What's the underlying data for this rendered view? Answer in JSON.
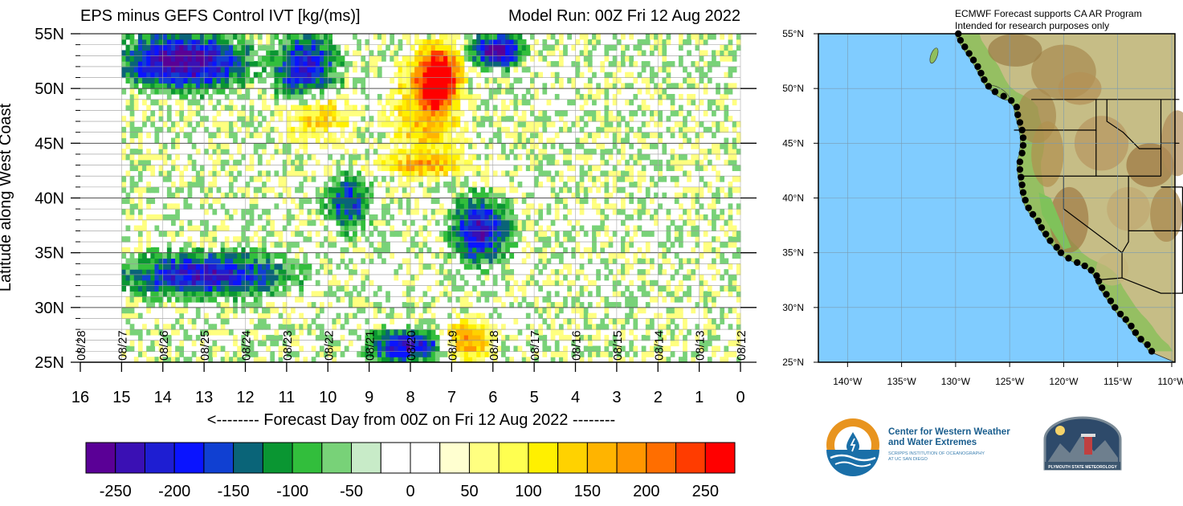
{
  "chart_data": [
    {
      "type": "heatmap",
      "title": "EPS minus GEFS Control IVT [kg/(ms)]",
      "subtitle": "Model Run: 00Z Fri 12 Aug 2022",
      "xlabel": "<-------- Forecast Day from 00Z on Fri 12 Aug 2022 --------",
      "ylabel": "Latitude along West Coast",
      "xlim": [
        16,
        0
      ],
      "ylim": [
        25,
        55
      ],
      "x_ticks": [
        "16",
        "15",
        "14",
        "13",
        "12",
        "11",
        "10",
        "9",
        "8",
        "7",
        "6",
        "5",
        "4",
        "3",
        "2",
        "1",
        "0"
      ],
      "y_ticks": [
        "25N",
        "30N",
        "35N",
        "40N",
        "45N",
        "50N",
        "55N"
      ],
      "date_labels": [
        "08/28",
        "08/27",
        "08/26",
        "08/25",
        "08/24",
        "08/23",
        "08/22",
        "08/21",
        "08/20",
        "08/19",
        "08/18",
        "08/17",
        "08/16",
        "08/15",
        "08/14",
        "08/13",
        "08/12"
      ],
      "colorbar": {
        "ticks": [
          "-250",
          "-200",
          "-150",
          "-100",
          "-50",
          "0",
          "50",
          "100",
          "150",
          "200",
          "250"
        ],
        "colors": [
          "#5a0096",
          "#3a10b4",
          "#1e1ed2",
          "#0a14ff",
          "#1040d2",
          "#0a6478",
          "#0a9632",
          "#32be3c",
          "#78d278",
          "#c8ebc8",
          "#ffffff",
          "#ffffff",
          "#ffffd0",
          "#ffff80",
          "#ffff50",
          "#fff000",
          "#ffd200",
          "#ffb400",
          "#ff9600",
          "#ff6e00",
          "#ff3c00",
          "#ff0000"
        ]
      },
      "features": [
        {
          "lat": [
            50,
            55
          ],
          "day": [
            15,
            12
          ],
          "value": -250
        },
        {
          "lat": [
            49,
            55
          ],
          "day": [
            11.3,
            9.8
          ],
          "value": -200
        },
        {
          "lat": [
            48.5,
            54
          ],
          "day": [
            7.8,
            6.8
          ],
          "value": 250
        },
        {
          "lat": [
            43,
            53
          ],
          "day": [
            8.4,
            6.8
          ],
          "value": 150
        },
        {
          "lat": [
            52,
            55
          ],
          "day": [
            6.5,
            5.3
          ],
          "value": -250
        },
        {
          "lat": [
            31,
            35
          ],
          "day": [
            15,
            11
          ],
          "value": -200
        },
        {
          "lat": [
            34,
            40
          ],
          "day": [
            7,
            5.6
          ],
          "value": -200
        },
        {
          "lat": [
            25,
            28
          ],
          "day": [
            9,
            7.2
          ],
          "value": -200
        },
        {
          "lat": [
            37,
            42
          ],
          "day": [
            10,
            9
          ],
          "value": -150
        },
        {
          "lat": [
            42,
            44
          ],
          "day": [
            9,
            6.5
          ],
          "value": 100
        },
        {
          "lat": [
            25,
            29
          ],
          "day": [
            7.2,
            6
          ],
          "value": 150
        },
        {
          "lat": [
            45,
            50
          ],
          "day": [
            11,
            9.5
          ],
          "value": 100
        }
      ]
    },
    {
      "type": "map",
      "title": "ECMWF Forecast supports CA AR Program",
      "subtitle": "Intended for research purposes only",
      "lon_ticks": [
        "140°W",
        "135°W",
        "130°W",
        "125°W",
        "120°W",
        "115°W",
        "110°W"
      ],
      "lat_ticks": [
        "25°N",
        "30°N",
        "35°N",
        "40°N",
        "45°N",
        "50°N",
        "55°N"
      ],
      "ocean_color": "#80ccff",
      "coast_points": [
        [
          -130.0,
          55.0
        ],
        [
          -129.8,
          54.4
        ],
        [
          -129.4,
          53.8
        ],
        [
          -129.0,
          53.2
        ],
        [
          -128.6,
          52.6
        ],
        [
          -128.2,
          52.0
        ],
        [
          -127.9,
          51.4
        ],
        [
          -127.6,
          50.8
        ],
        [
          -127.2,
          50.2
        ],
        [
          -126.6,
          49.7
        ],
        [
          -125.8,
          49.3
        ],
        [
          -125.1,
          48.9
        ],
        [
          -124.6,
          48.3
        ],
        [
          -124.5,
          47.6
        ],
        [
          -124.3,
          46.9
        ],
        [
          -124.1,
          46.2
        ],
        [
          -124.0,
          45.5
        ],
        [
          -124.0,
          44.8
        ],
        [
          -124.1,
          44.1
        ],
        [
          -124.3,
          43.3
        ],
        [
          -124.3,
          42.6
        ],
        [
          -124.2,
          41.9
        ],
        [
          -124.1,
          41.2
        ],
        [
          -124.0,
          40.5
        ],
        [
          -123.8,
          39.8
        ],
        [
          -123.5,
          39.1
        ],
        [
          -123.1,
          38.5
        ],
        [
          -122.6,
          37.9
        ],
        [
          -122.3,
          37.3
        ],
        [
          -121.9,
          36.7
        ],
        [
          -121.5,
          36.1
        ],
        [
          -120.9,
          35.5
        ],
        [
          -120.5,
          35.0
        ],
        [
          -119.8,
          34.5
        ],
        [
          -119.0,
          34.1
        ],
        [
          -118.3,
          33.8
        ],
        [
          -117.7,
          33.4
        ],
        [
          -117.2,
          32.9
        ],
        [
          -117.0,
          32.4
        ],
        [
          -116.7,
          31.8
        ],
        [
          -116.3,
          31.2
        ],
        [
          -115.9,
          30.6
        ],
        [
          -115.5,
          30.0
        ],
        [
          -115.0,
          29.4
        ],
        [
          -114.5,
          28.9
        ],
        [
          -114.0,
          28.3
        ],
        [
          -113.6,
          27.7
        ],
        [
          -113.1,
          27.1
        ],
        [
          -112.5,
          26.6
        ],
        [
          -112.1,
          26.0
        ]
      ]
    }
  ],
  "logos": {
    "cw3e_line1": "Center for Western Weather",
    "cw3e_line2": "and Water Extremes",
    "cw3e_line3": "SCRIPPS INSTITUTION OF OCEANOGRAPHY",
    "cw3e_line4": "AT UC SAN DIEGO",
    "psu_text": "PLYMOUTH STATE METEOROLOGY"
  }
}
